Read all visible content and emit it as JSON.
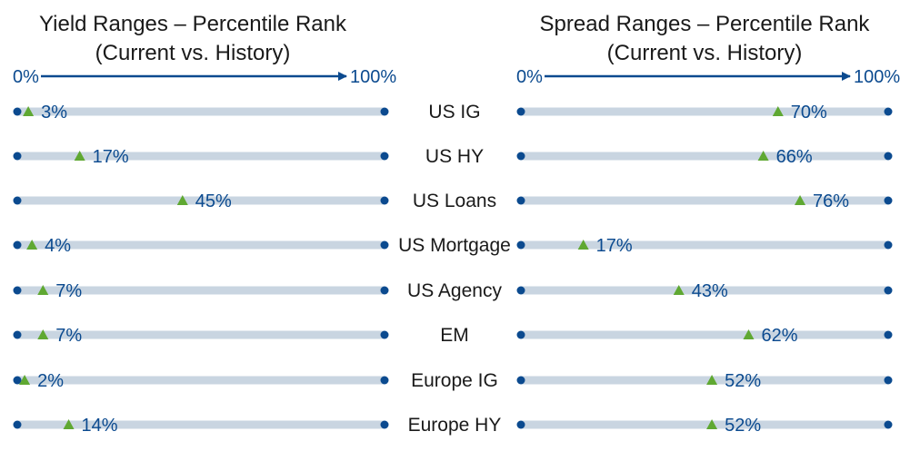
{
  "chart_data": [
    {
      "type": "range",
      "title_line1": "Yield Ranges – Percentile Rank",
      "title_line2": "(Current vs. History)",
      "axis_start_label": "0%",
      "axis_end_label": "100%",
      "xlim": [
        0,
        100
      ],
      "categories": [
        "US IG",
        "US HY",
        "US Loans",
        "US Mortgage",
        "US Agency",
        "EM",
        "Europe IG",
        "Europe HY"
      ],
      "values": [
        3,
        17,
        45,
        4,
        7,
        7,
        2,
        14
      ],
      "value_labels": [
        "3%",
        "17%",
        "45%",
        "4%",
        "7%",
        "7%",
        "2%",
        "14%"
      ]
    },
    {
      "type": "range",
      "title_line1": "Spread Ranges – Percentile Rank",
      "title_line2": "(Current vs. History)",
      "axis_start_label": "0%",
      "axis_end_label": "100%",
      "xlim": [
        0,
        100
      ],
      "categories": [
        "US IG",
        "US HY",
        "US Loans",
        "US Mortgage",
        "US Agency",
        "EM",
        "Europe IG",
        "Europe HY"
      ],
      "values": [
        70,
        66,
        76,
        17,
        43,
        62,
        52,
        52
      ],
      "value_labels": [
        "70%",
        "66%",
        "76%",
        "17%",
        "43%",
        "62%",
        "52%",
        "52%"
      ]
    }
  ],
  "colors": {
    "bar": "#c9d5e1",
    "endpoint": "#0b4a8f",
    "marker": "#5fa832",
    "axis": "#0b4a8f",
    "value_text": "#0b4a8f",
    "title_text": "#1a1a1a"
  }
}
